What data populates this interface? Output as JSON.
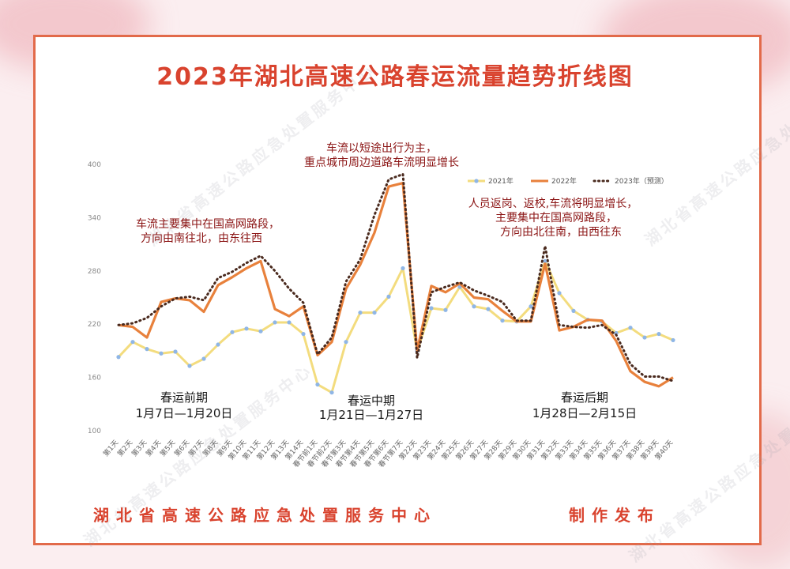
{
  "header": {
    "title": "2023年湖北高速公路春运流量趋势折线图"
  },
  "footer": {
    "publisher": "湖北省高速公路应急处置服务中心",
    "action": "制作发布"
  },
  "watermark": "湖北省高速公路应急处置服务中心",
  "annotations": [
    {
      "lines": [
        "车流主要集中在国高网路段，",
        "方向由南往北，由东往西"
      ]
    },
    {
      "lines": [
        "车流以短途出行为主，",
        "重点城市周边道路车流明显增长"
      ]
    },
    {
      "lines": [
        "人员返岗、返校,车流将明显增长，",
        "主要集中在国高网路段，",
        "方向由北往南，由西往东"
      ]
    }
  ],
  "phases": [
    {
      "name": "春运前期",
      "dates": "1月7日—1月20日"
    },
    {
      "name": "春运中期",
      "dates": "1月21日—1月27日"
    },
    {
      "name": "春运后期",
      "dates": "1月28日—2月15日"
    }
  ],
  "colors": {
    "accent": "#d9432e",
    "series_2021": "#f3dc7e",
    "series_2022": "#e8813c",
    "series_2023": "#4a2a1e"
  },
  "chart_data": {
    "type": "line",
    "title": "2023年湖北高速公路春运流量趋势折线图",
    "xlabel": "",
    "ylabel": "",
    "ylim": [
      100,
      400
    ],
    "yticks": [
      100,
      160,
      220,
      280,
      340,
      400
    ],
    "grid": false,
    "legend": "top-right",
    "categories": [
      "第1天",
      "第2天",
      "第3天",
      "第4天",
      "第5天",
      "第6天",
      "第7天",
      "第8天",
      "第9天",
      "第10天",
      "第11天",
      "第12天",
      "第13天",
      "第14天",
      "春节前1天",
      "春节前2天",
      "春节第3天",
      "春节第4天",
      "春节第5天",
      "春节第6天",
      "春节第7天",
      "第22天",
      "第23天",
      "第24天",
      "第25天",
      "第26天",
      "第27天",
      "第28天",
      "第29天",
      "第30天",
      "第31天",
      "第32天",
      "第33天",
      "第34天",
      "第35天",
      "第36天",
      "第37天",
      "第38天",
      "第39天",
      "第40天"
    ],
    "series": [
      {
        "name": "2021年",
        "values": [
          183,
          200,
          192,
          187,
          189,
          173,
          181,
          197,
          211,
          215,
          212,
          222,
          222,
          209,
          152,
          143,
          200,
          233,
          233,
          251,
          283,
          190,
          238,
          236,
          262,
          240,
          237,
          224,
          223,
          240,
          291,
          255,
          235,
          225,
          223,
          210,
          216,
          205,
          209,
          202
        ]
      },
      {
        "name": "2022年",
        "values": [
          219,
          217,
          205,
          245,
          249,
          247,
          234,
          264,
          273,
          283,
          291,
          237,
          229,
          240,
          185,
          200,
          260,
          287,
          323,
          375,
          379,
          190,
          263,
          256,
          266,
          250,
          248,
          235,
          223,
          223,
          288,
          213,
          217,
          225,
          224,
          201,
          167,
          155,
          150,
          160
        ]
      },
      {
        "name": "2023年（预测）",
        "values": [
          219,
          221,
          227,
          240,
          249,
          251,
          247,
          272,
          279,
          289,
          297,
          280,
          260,
          244,
          186,
          205,
          268,
          293,
          343,
          383,
          389,
          182,
          256,
          262,
          267,
          258,
          252,
          245,
          224,
          224,
          308,
          219,
          217,
          216,
          219,
          208,
          175,
          161,
          161,
          156
        ]
      }
    ]
  }
}
